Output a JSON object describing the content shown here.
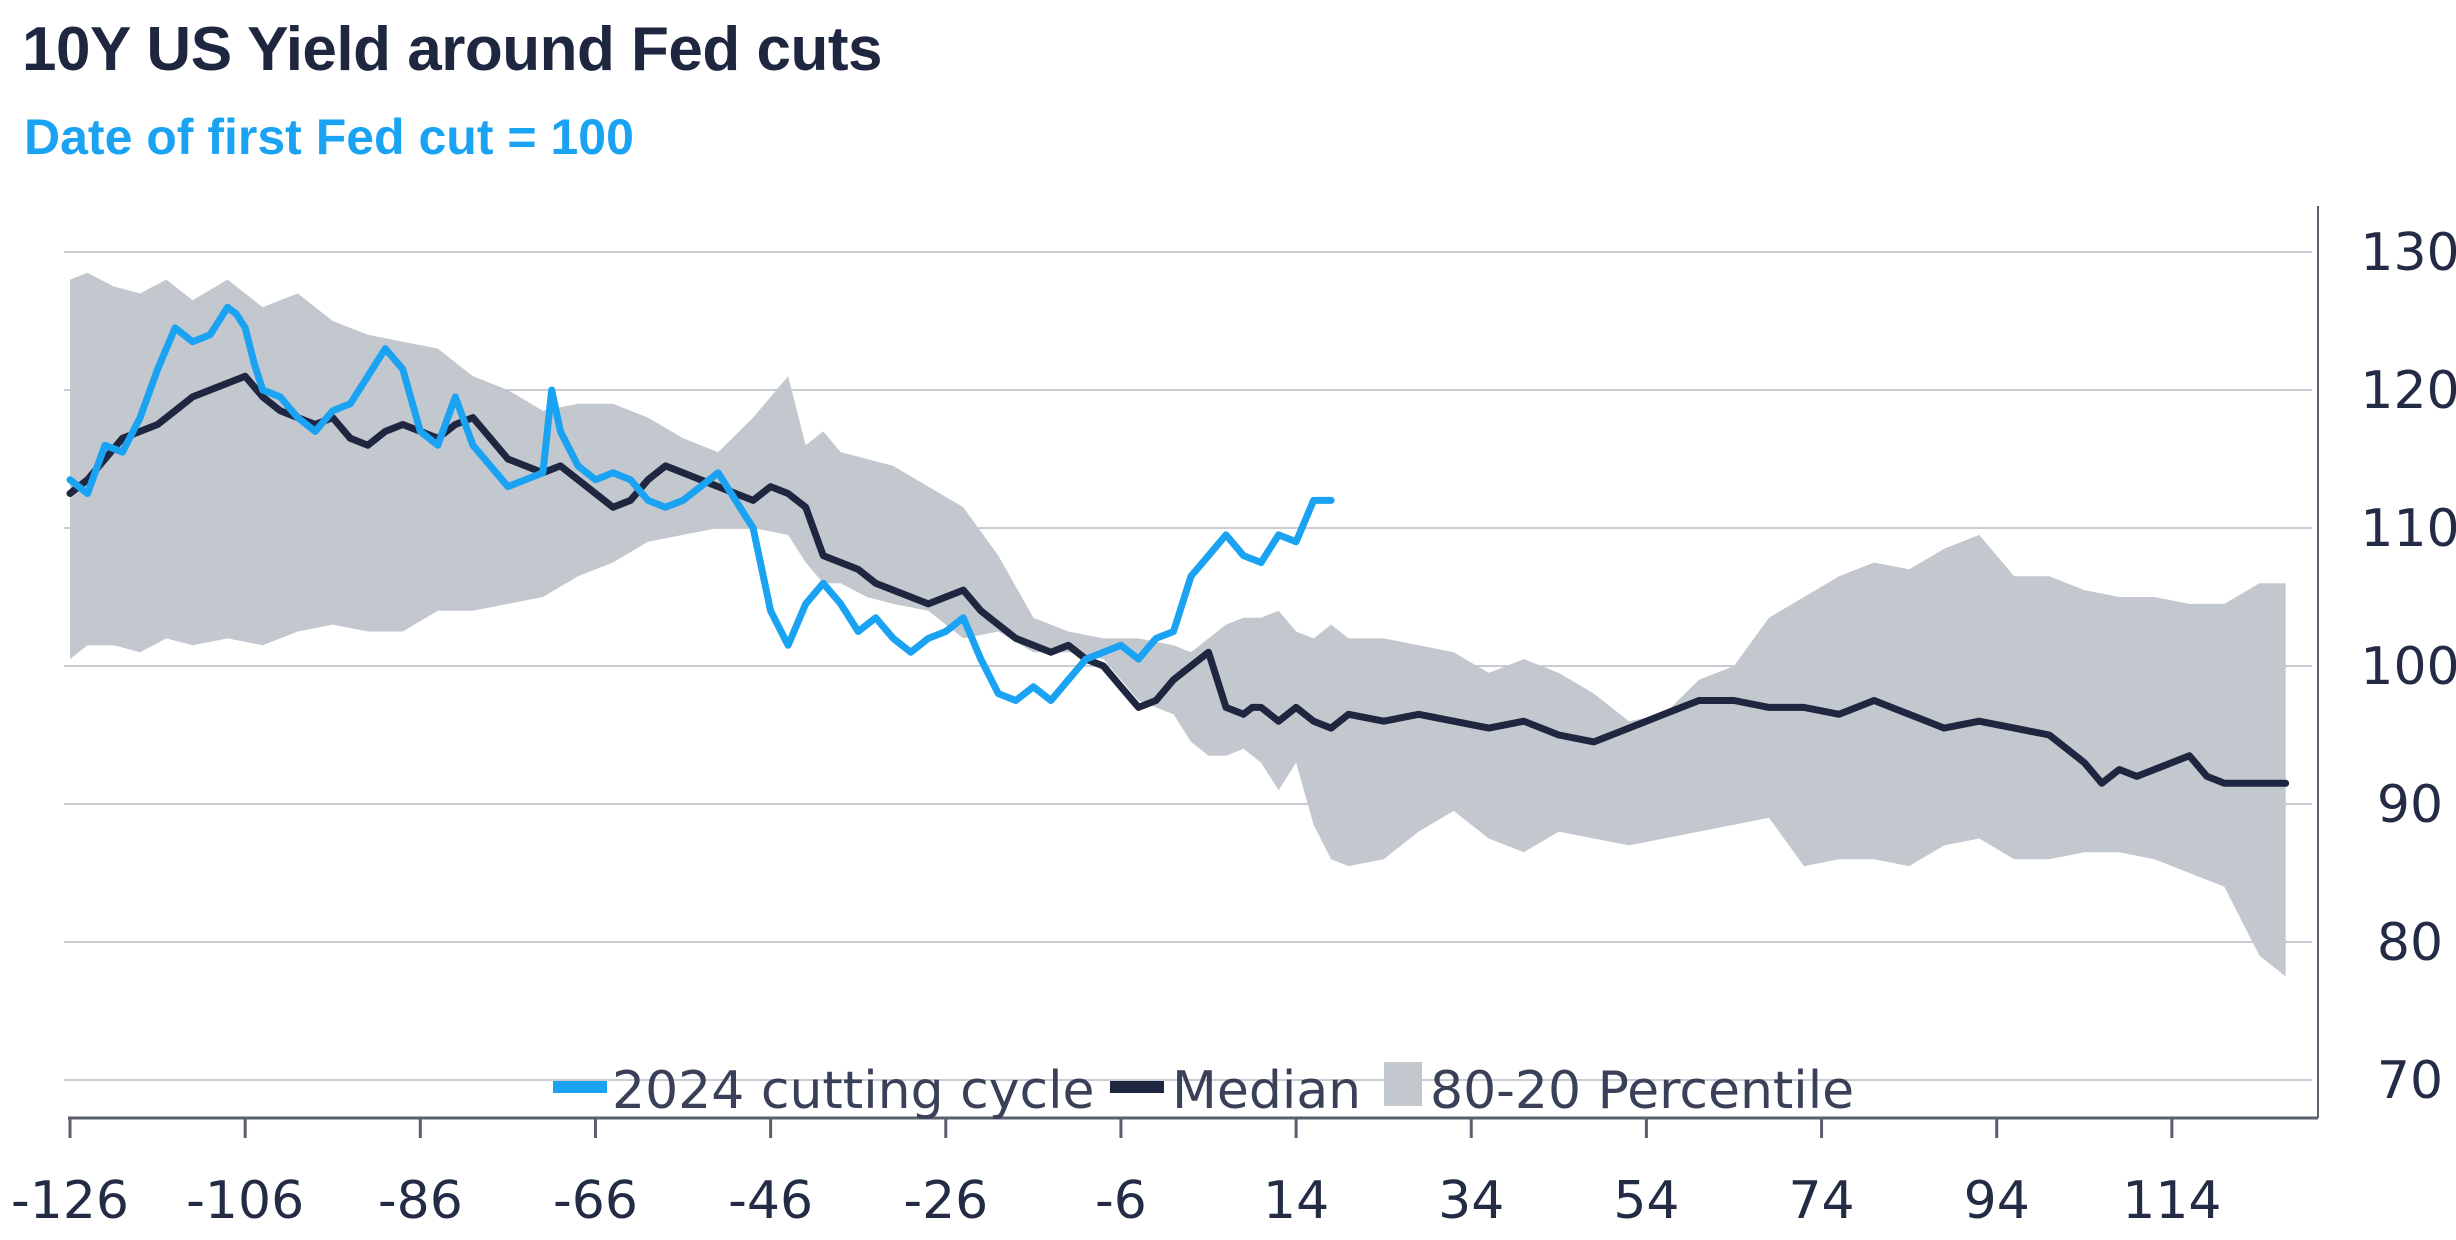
{
  "title": "10Y US Yield around Fed cuts",
  "subtitle": "Date of first Fed cut = 100",
  "chart_data": {
    "type": "line",
    "title": "10Y US Yield around Fed cuts",
    "subtitle": "Date of first Fed cut = 100",
    "xlabel": "",
    "ylabel": "",
    "xlim": [
      -126,
      130
    ],
    "ylim": [
      70,
      130
    ],
    "x_ticks": [
      "-126",
      "-106",
      "-86",
      "-66",
      "-46",
      "-26",
      "-6",
      "14",
      "34",
      "54",
      "74",
      "94",
      "114"
    ],
    "y_ticks": [
      "130",
      "120",
      "110",
      "100",
      "90",
      "80",
      "70"
    ],
    "y_axis_side": "right",
    "grid": "horizontal",
    "legend": {
      "position": "bottom-center",
      "entries": [
        "2024 cutting cycle",
        "Median",
        "80-20 Percentile"
      ]
    },
    "colors": {
      "cycle_2024": "#1aa3f2",
      "median": "#1e2640",
      "band": "#c3c7ce",
      "grid": "#c8cbd2",
      "axis": "#5a5f6e"
    },
    "band": {
      "name": "80-20 Percentile",
      "x": [
        -126,
        -124,
        -121,
        -118,
        -115,
        -112,
        -108,
        -104,
        -100,
        -96,
        -92,
        -88,
        -84,
        -80,
        -76,
        -72,
        -68,
        -64,
        -60,
        -56,
        -52,
        -48,
        -44,
        -42,
        -40,
        -38,
        -35,
        -32,
        -28,
        -24,
        -20,
        -16,
        -12,
        -8,
        -4,
        0,
        2,
        4,
        6,
        8,
        10,
        12,
        14,
        16,
        18,
        20,
        24,
        28,
        32,
        36,
        40,
        44,
        48,
        52,
        56,
        60,
        64,
        68,
        72,
        76,
        80,
        84,
        88,
        92,
        96,
        100,
        104,
        108,
        112,
        116,
        120,
        124,
        127
      ],
      "upper": [
        128,
        128.5,
        127.5,
        127,
        128,
        126.5,
        128,
        126,
        127,
        125,
        124,
        123.5,
        123,
        121,
        120,
        118.5,
        119,
        119,
        118,
        116.5,
        115.5,
        118,
        121,
        116,
        117,
        115.5,
        115,
        114.5,
        113,
        111.5,
        108,
        103.5,
        102.5,
        102,
        102,
        101.5,
        101,
        102,
        103,
        103.5,
        103.5,
        104,
        102.5,
        102,
        103,
        102,
        102,
        101.5,
        101,
        99.5,
        100.5,
        99.5,
        98,
        96,
        96.5,
        99,
        100,
        103.5,
        105,
        106.5,
        107.5,
        107,
        108.5,
        109.5,
        106.5,
        106.5,
        105.5,
        105,
        105,
        104.5,
        104.5,
        106,
        106
      ],
      "lower": [
        100.5,
        101.5,
        101.5,
        101,
        102,
        101.5,
        102,
        101.5,
        102.5,
        103,
        102.5,
        102.5,
        104,
        104,
        104.5,
        105,
        106.5,
        107.5,
        109,
        109.5,
        110,
        110,
        109.5,
        107.5,
        106,
        106,
        105,
        104.5,
        104,
        102,
        102.5,
        101,
        101,
        100.5,
        97.5,
        96.5,
        94.5,
        93.5,
        93.5,
        94,
        93,
        91,
        93,
        88.5,
        86,
        85.5,
        86,
        88,
        89.5,
        87.5,
        86.5,
        88,
        87.5,
        87,
        87.5,
        88,
        88.5,
        89,
        85.5,
        86,
        86,
        85.5,
        87,
        87.5,
        86,
        86,
        86.5,
        86.5,
        86,
        85,
        84,
        79,
        77.5
      ]
    },
    "series": [
      {
        "name": "2024 cutting cycle",
        "x": [
          -126,
          -124,
          -122,
          -120,
          -118,
          -116,
          -114,
          -112,
          -110,
          -108,
          -107,
          -106,
          -105,
          -104,
          -102,
          -100,
          -98,
          -96,
          -94,
          -92,
          -90,
          -88,
          -86,
          -84,
          -82,
          -80,
          -78,
          -76,
          -74,
          -72,
          -71,
          -70,
          -68,
          -66,
          -64,
          -62,
          -60,
          -58,
          -56,
          -54,
          -52,
          -50,
          -48,
          -46,
          -44,
          -42,
          -40,
          -38,
          -36,
          -34,
          -32,
          -30,
          -28,
          -26,
          -24,
          -22,
          -20,
          -18,
          -16,
          -14,
          -12,
          -10,
          -8,
          -6,
          -4,
          -2,
          0,
          2,
          4,
          6,
          8,
          10,
          12,
          14,
          16,
          18
        ],
        "values": [
          113.5,
          112.5,
          116,
          115.5,
          118,
          121.5,
          124.5,
          123.5,
          124,
          126,
          125.5,
          124.5,
          122,
          120,
          119.5,
          118,
          117,
          118.5,
          119,
          121,
          123,
          121.5,
          117,
          116,
          119.5,
          116,
          114.5,
          113,
          113.5,
          114,
          120,
          117,
          114.5,
          113.5,
          114,
          113.5,
          112,
          111.5,
          112,
          113,
          114,
          112,
          110,
          104,
          101.5,
          104.5,
          106,
          104.5,
          102.5,
          103.5,
          102,
          101,
          102,
          102.5,
          103.5,
          100.5,
          98,
          97.5,
          98.5,
          97.5,
          99,
          100.5,
          101,
          101.5,
          100.5,
          102,
          102.5,
          106.5,
          108,
          109.5,
          108,
          107.5,
          109.5,
          109,
          112,
          112
        ]
      },
      {
        "name": "Median",
        "x": [
          -126,
          -124,
          -122,
          -120,
          -118,
          -116,
          -114,
          -112,
          -110,
          -108,
          -106,
          -104,
          -102,
          -100,
          -98,
          -96,
          -94,
          -92,
          -90,
          -88,
          -86,
          -84,
          -82,
          -80,
          -78,
          -76,
          -74,
          -72,
          -70,
          -68,
          -66,
          -64,
          -62,
          -60,
          -58,
          -56,
          -54,
          -52,
          -50,
          -48,
          -46,
          -44,
          -42,
          -40,
          -38,
          -36,
          -34,
          -32,
          -30,
          -28,
          -26,
          -24,
          -22,
          -20,
          -18,
          -16,
          -14,
          -12,
          -10,
          -8,
          -6,
          -4,
          -2,
          0,
          2,
          4,
          6,
          8,
          9,
          10,
          12,
          14,
          16,
          18,
          20,
          24,
          28,
          32,
          36,
          40,
          44,
          48,
          52,
          56,
          60,
          64,
          68,
          72,
          76,
          80,
          84,
          88,
          92,
          96,
          100,
          104,
          106,
          108,
          110,
          112,
          116,
          118,
          120,
          124,
          127
        ],
        "values": [
          112.5,
          113.5,
          115,
          116.5,
          117,
          117.5,
          118.5,
          119.5,
          120,
          120.5,
          121,
          119.5,
          118.5,
          118,
          117.5,
          118,
          116.5,
          116,
          117,
          117.5,
          117,
          116.5,
          117.5,
          118,
          116.5,
          115,
          114.5,
          114,
          114.5,
          113.5,
          112.5,
          111.5,
          112,
          113.5,
          114.5,
          114,
          113.5,
          113,
          112.5,
          112,
          113,
          112.5,
          111.5,
          108,
          107.5,
          107,
          106,
          105.5,
          105,
          104.5,
          105,
          105.5,
          104,
          103,
          102,
          101.5,
          101,
          101.5,
          100.5,
          100,
          98.5,
          97,
          97.5,
          99,
          100,
          101,
          97,
          96.5,
          97,
          97,
          96,
          97,
          96,
          95.5,
          96.5,
          96,
          96.5,
          96,
          95.5,
          96,
          95,
          94.5,
          95.5,
          96.5,
          97.5,
          97.5,
          97,
          97,
          96.5,
          97.5,
          96.5,
          95.5,
          96,
          95.5,
          95,
          93,
          91.5,
          92.5,
          92,
          92.5,
          93.5,
          92,
          91.5,
          91.5,
          91.5
        ]
      }
    ]
  }
}
